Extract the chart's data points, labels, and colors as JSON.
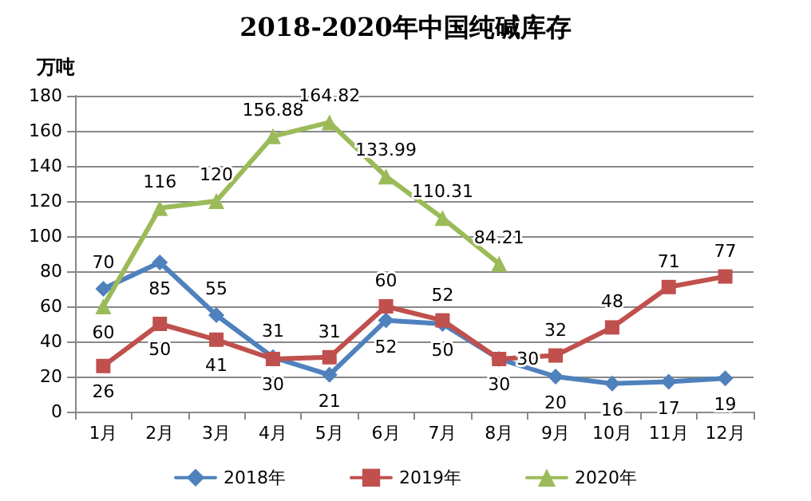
{
  "chart_data": {
    "type": "line",
    "title": "2018-2020年中国纯碱库存",
    "ylabel": "万吨",
    "categories": [
      "1月",
      "2月",
      "3月",
      "4月",
      "5月",
      "6月",
      "7月",
      "8月",
      "9月",
      "10月",
      "11月",
      "12月"
    ],
    "series": [
      {
        "name": "2018年",
        "color": "#4f81bd",
        "marker": "diamond",
        "values": [
          70,
          85,
          55,
          31,
          21,
          52,
          50,
          30,
          20,
          16,
          17,
          19
        ]
      },
      {
        "name": "2019年",
        "color": "#c0504d",
        "marker": "square",
        "values": [
          26,
          50,
          41,
          30,
          31,
          60,
          52,
          30,
          32,
          48,
          71,
          77
        ]
      },
      {
        "name": "2020年",
        "color": "#9bbb59",
        "marker": "triangle",
        "values": [
          60,
          116,
          120,
          156.88,
          164.82,
          133.99,
          110.31,
          84.21,
          null,
          null,
          null,
          null
        ]
      }
    ],
    "ylim": [
      0,
      180
    ],
    "yticks": [
      0,
      20,
      40,
      60,
      80,
      100,
      120,
      140,
      160,
      180
    ],
    "grid": "y",
    "legend": "bottom",
    "data_labels": true,
    "line_style": "solid"
  }
}
